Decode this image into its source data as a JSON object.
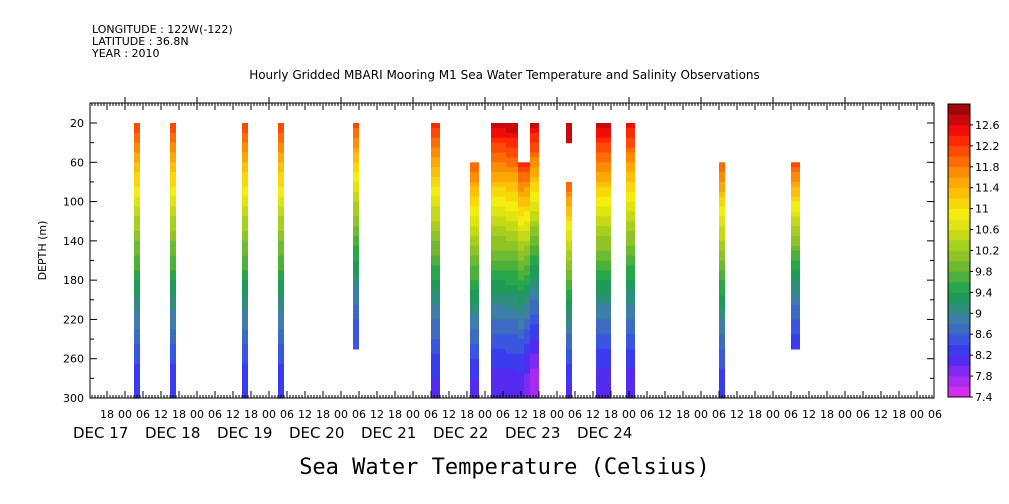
{
  "header": {
    "longitude": "LONGITUDE : 122W(-122)",
    "latitude": "LATITUDE : 36.8N",
    "year": "YEAR : 2010"
  },
  "chart_data": {
    "type": "heatmap",
    "title": "Hourly Gridded MBARI Mooring M1 Sea Water Temperature and Salinity Observations",
    "subtitle": "Sea Water Temperature (Celsius)",
    "ylabel": "DEPTH (m)",
    "xlabel": "",
    "x_unit": "hours since DEC 17 00",
    "xlim": [
      -6,
      186
    ],
    "ylim": [
      300,
      0
    ],
    "y_ticks": [
      20,
      60,
      100,
      140,
      180,
      220,
      260,
      300
    ],
    "x_tick_labels": [
      "18",
      "00",
      "06",
      "12",
      "18",
      "00",
      "06",
      "12",
      "18",
      "00",
      "06",
      "12",
      "18",
      "00",
      "06",
      "12",
      "18",
      "00",
      "06",
      "12",
      "18",
      "00",
      "06",
      "12",
      "18",
      "00",
      "06",
      "12",
      "18",
      "00",
      "06",
      "12",
      "18"
    ],
    "x_tick_hours": [
      -6,
      0,
      6,
      12,
      18,
      24,
      30,
      36,
      42,
      48,
      54,
      60,
      66,
      72,
      78,
      84,
      90,
      96,
      102,
      108,
      114,
      120,
      126,
      132,
      138,
      144,
      150,
      156,
      162,
      168,
      174,
      180,
      186
    ],
    "date_labels": [
      {
        "label": "DEC 17",
        "hour": 0
      },
      {
        "label": "DEC 18",
        "hour": 24
      },
      {
        "label": "DEC 19",
        "hour": 48
      },
      {
        "label": "DEC 20",
        "hour": 72
      },
      {
        "label": "DEC 21",
        "hour": 96
      },
      {
        "label": "DEC 22",
        "hour": 120
      },
      {
        "label": "DEC 23",
        "hour": 144
      },
      {
        "label": "DEC 24",
        "hour": 168
      }
    ],
    "colorbar": {
      "levels": [
        7.4,
        7.6,
        7.8,
        8.0,
        8.2,
        8.4,
        8.6,
        8.8,
        9.0,
        9.2,
        9.4,
        9.6,
        9.8,
        10.0,
        10.2,
        10.4,
        10.6,
        10.8,
        11.0,
        11.2,
        11.4,
        11.6,
        11.8,
        12.0,
        12.2,
        12.4,
        12.6,
        12.8
      ],
      "tick_labels": [
        "7.4",
        "7.8",
        "8.2",
        "8.6",
        "9",
        "9.4",
        "9.8",
        "10.2",
        "10.6",
        "11",
        "11.4",
        "11.8",
        "12.2",
        "12.6"
      ],
      "colors": [
        "#d62bf0",
        "#a72bf0",
        "#7d2bf0",
        "#542bf0",
        "#3b3cf0",
        "#3a56e0",
        "#3c6bc0",
        "#3d7fa8",
        "#2f8e7d",
        "#1f9a5a",
        "#2aa64a",
        "#4eb03c",
        "#6eba30",
        "#8ec428",
        "#a8cf20",
        "#c4da18",
        "#e0e410",
        "#f4ee10",
        "#f8d80a",
        "#fbc007",
        "#fca805",
        "#fd8c05",
        "#fd6c05",
        "#fe4a05",
        "#fe2a05",
        "#f00c08",
        "#c8080a",
        "#a00808"
      ]
    },
    "columns": [
      {
        "start": 3,
        "end": 5,
        "top": 20,
        "bottom": 300,
        "t_top": 12.2,
        "t_bottom": 8.2
      },
      {
        "start": 15,
        "end": 17,
        "top": 20,
        "bottom": 300,
        "t_top": 12.2,
        "t_bottom": 8.2
      },
      {
        "start": 39,
        "end": 41,
        "top": 20,
        "bottom": 300,
        "t_top": 12.2,
        "t_bottom": 8.2
      },
      {
        "start": 51,
        "end": 53,
        "top": 20,
        "bottom": 300,
        "t_top": 12.2,
        "t_bottom": 8.2
      },
      {
        "start": 76,
        "end": 78,
        "top": 20,
        "bottom": 250,
        "t_top": 12.1,
        "t_bottom": 8.4
      },
      {
        "start": 102,
        "end": 105,
        "top": 20,
        "bottom": 300,
        "t_top": 12.3,
        "t_bottom": 8.1
      },
      {
        "start": 115,
        "end": 118,
        "top": 60,
        "bottom": 300,
        "t_top": 12.0,
        "t_bottom": 8.1
      },
      {
        "start": 122,
        "end": 127,
        "top": 20,
        "bottom": 300,
        "t_top": 12.7,
        "t_bottom": 8.0
      },
      {
        "start": 127,
        "end": 131,
        "top": 20,
        "bottom": 300,
        "t_top": 12.8,
        "t_bottom": 8.0
      },
      {
        "start": 131,
        "end": 133,
        "top": 60,
        "bottom": 300,
        "t_top": 12.3,
        "t_bottom": 8.0
      },
      {
        "start": 133,
        "end": 135,
        "top": 60,
        "bottom": 300,
        "t_top": 12.3,
        "t_bottom": 7.8
      },
      {
        "start": 135,
        "end": 138,
        "top": 20,
        "bottom": 300,
        "t_top": 12.7,
        "t_bottom": 7.6
      },
      {
        "start": 147,
        "end": 149,
        "top": 20,
        "bottom": 40,
        "t_top": 12.6,
        "t_bottom": 12.6
      },
      {
        "start": 147,
        "end": 149,
        "top": 80,
        "bottom": 300,
        "t_top": 12.0,
        "t_bottom": 8.1
      },
      {
        "start": 157,
        "end": 162,
        "top": 20,
        "bottom": 300,
        "t_top": 12.7,
        "t_bottom": 8.0
      },
      {
        "start": 167,
        "end": 170,
        "top": 20,
        "bottom": 300,
        "t_top": 12.5,
        "t_bottom": 8.0
      },
      {
        "start": 198,
        "end": 200,
        "top": 60,
        "bottom": 300,
        "t_top": 12.0,
        "t_bottom": 8.2
      },
      {
        "start": 222,
        "end": 225,
        "top": 60,
        "bottom": 250,
        "t_top": 12.1,
        "t_bottom": 8.3
      }
    ]
  }
}
